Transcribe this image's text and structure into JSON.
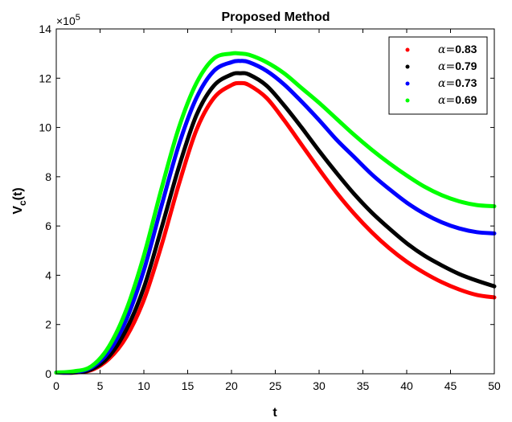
{
  "chart_data": {
    "type": "line",
    "title": "Proposed Method",
    "xlabel": "t",
    "ylabel_main": "V",
    "ylabel_sub": "c",
    "ylabel_rest": "(t)",
    "y_exponent_base": "×10",
    "y_exponent_power": "5",
    "xlim": [
      0,
      50
    ],
    "ylim": [
      0,
      14
    ],
    "x_ticks": [
      0,
      5,
      10,
      15,
      20,
      25,
      30,
      35,
      40,
      45,
      50
    ],
    "y_ticks": [
      0,
      2,
      4,
      6,
      8,
      10,
      12,
      14
    ],
    "y_scale": 100000,
    "grid": false,
    "legend_position": "top-right",
    "x": [
      0,
      2,
      4,
      6,
      8,
      10,
      12,
      14,
      16,
      18,
      20,
      21,
      22,
      24,
      26,
      28,
      30,
      32,
      34,
      36,
      38,
      40,
      42,
      44,
      46,
      48,
      50
    ],
    "series": [
      {
        "name": "0.83",
        "label_prefix": "α=",
        "label_value": "0.83",
        "color": "#ff0000",
        "values": [
          0.05,
          0.05,
          0.15,
          0.6,
          1.5,
          3.0,
          5.2,
          7.7,
          9.9,
          11.2,
          11.72,
          11.8,
          11.72,
          11.2,
          10.3,
          9.3,
          8.3,
          7.35,
          6.5,
          5.75,
          5.1,
          4.55,
          4.1,
          3.72,
          3.42,
          3.2,
          3.1
        ]
      },
      {
        "name": "0.79",
        "label_prefix": "α=",
        "label_value": "0.79",
        "color": "#000000",
        "values": [
          0.05,
          0.05,
          0.18,
          0.7,
          1.8,
          3.5,
          5.9,
          8.4,
          10.5,
          11.7,
          12.15,
          12.2,
          12.15,
          11.7,
          10.9,
          10.0,
          9.05,
          8.15,
          7.3,
          6.55,
          5.9,
          5.3,
          4.8,
          4.4,
          4.05,
          3.78,
          3.55
        ]
      },
      {
        "name": "0.73",
        "label_prefix": "α=",
        "label_value": "0.73",
        "color": "#0000ff",
        "values": [
          0.05,
          0.07,
          0.25,
          0.9,
          2.2,
          4.2,
          6.8,
          9.3,
          11.2,
          12.3,
          12.65,
          12.7,
          12.65,
          12.3,
          11.75,
          11.05,
          10.3,
          9.5,
          8.8,
          8.1,
          7.5,
          6.95,
          6.5,
          6.15,
          5.9,
          5.75,
          5.7
        ]
      },
      {
        "name": "0.69",
        "label_prefix": "α=",
        "label_value": "0.69",
        "color": "#00ff00",
        "values": [
          0.05,
          0.1,
          0.3,
          1.1,
          2.6,
          4.8,
          7.5,
          10.0,
          11.8,
          12.8,
          13.0,
          13.0,
          12.95,
          12.65,
          12.2,
          11.6,
          11.0,
          10.35,
          9.7,
          9.1,
          8.55,
          8.05,
          7.6,
          7.25,
          7.0,
          6.85,
          6.8
        ]
      }
    ]
  }
}
